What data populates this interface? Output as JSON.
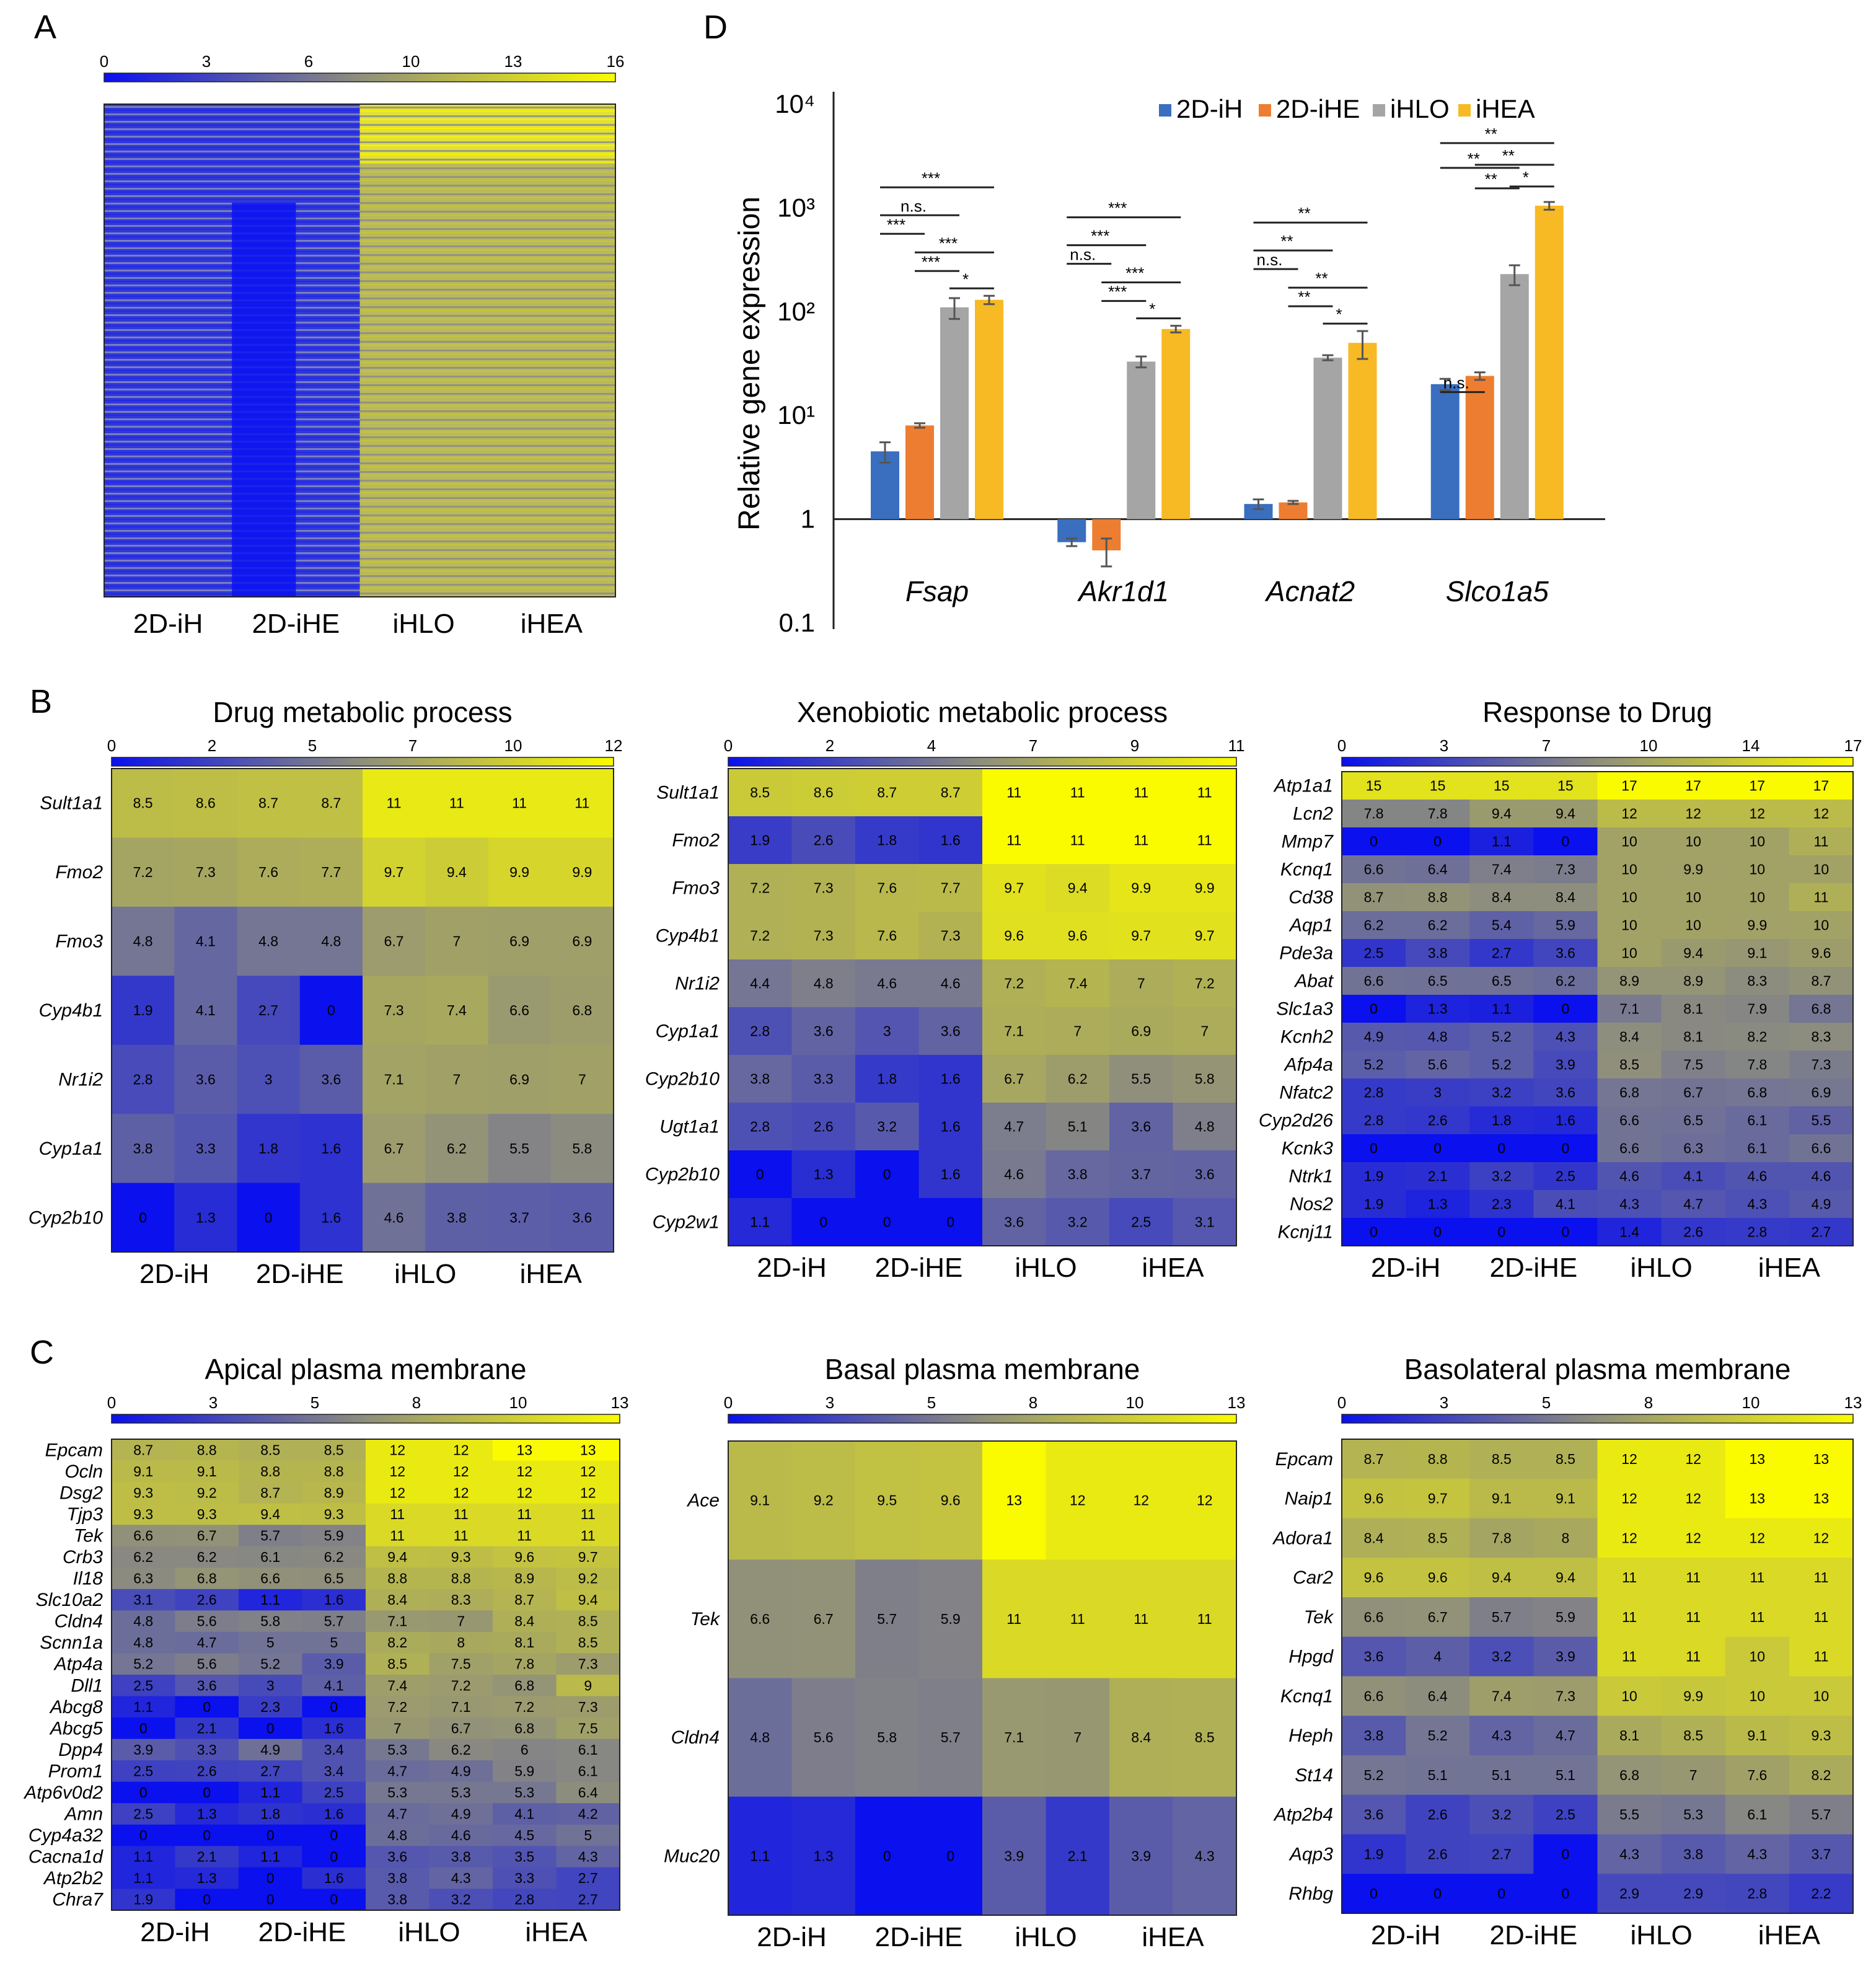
{
  "chart_data": [
    {
      "panel": "A",
      "type": "heatmap",
      "title": "",
      "scale_ticks": [
        "0",
        "3",
        "6",
        "10",
        "13",
        "16"
      ],
      "groups": [
        "2D-iH",
        "2D-iHE",
        "iHLO",
        "iHEA"
      ]
    },
    {
      "panel": "D",
      "type": "bar",
      "title": "",
      "ylabel": "Relative gene expression",
      "yscale": "log",
      "ylim": [
        0.1,
        10000
      ],
      "yticks": [
        "0.1",
        "1",
        "10¹",
        "10²",
        "10³",
        "10⁴"
      ],
      "categories": [
        "Fsap",
        "Akr1d1",
        "Acnat2",
        "Slco1a5"
      ],
      "series": [
        {
          "name": "2D-iH",
          "color": "#3a6ebf",
          "values": [
            4.5,
            0.6,
            1.4,
            20
          ],
          "err": [
            1.0,
            0.05,
            0.15,
            2.5
          ]
        },
        {
          "name": "2D-iHE",
          "color": "#ed7d31",
          "values": [
            8,
            0.5,
            1.45,
            24
          ],
          "err": [
            0.4,
            0.15,
            0.05,
            2
          ]
        },
        {
          "name": "iHLO",
          "color": "#a5a5a5",
          "values": [
            110,
            33,
            36,
            230
          ],
          "err": [
            25,
            4,
            2,
            50
          ]
        },
        {
          "name": "iHEA",
          "color": "#f7b924",
          "values": [
            130,
            68,
            50,
            1050
          ],
          "err": [
            12,
            5,
            15,
            90
          ]
        }
      ],
      "significance": [
        {
          "cat": 0,
          "labels": [
            "***",
            "n.s.",
            "***",
            "***",
            "***",
            "*"
          ]
        },
        {
          "cat": 1,
          "labels": [
            "***",
            "***",
            "n.s.",
            "***",
            "***",
            "*"
          ]
        },
        {
          "cat": 2,
          "labels": [
            "**",
            "**",
            "n.s.",
            "**",
            "**",
            "*"
          ]
        },
        {
          "cat": 3,
          "labels": [
            "**",
            "**",
            "*",
            "**",
            "**",
            "n.s."
          ]
        }
      ]
    },
    {
      "panel": "B",
      "type": "heatmap",
      "title": "Drug metabolic process",
      "scale_ticks": [
        "0",
        "2",
        "5",
        "7",
        "10",
        "12"
      ],
      "max": 12,
      "groups": [
        "2D-iH",
        "2D-iHE",
        "iHLO",
        "iHEA"
      ],
      "genes": [
        "Sult1a1",
        "Fmo2",
        "Fmo3",
        "Cyp4b1",
        "Nr1i2",
        "Cyp1a1",
        "Cyp2b10"
      ],
      "values": [
        [
          "8.5",
          "8.6",
          "8.7",
          "8.7",
          "11",
          "11",
          "11",
          "11"
        ],
        [
          "7.2",
          "7.3",
          "7.6",
          "7.7",
          "9.7",
          "9.4",
          "9.9",
          "9.9"
        ],
        [
          "4.8",
          "4.1",
          "4.8",
          "4.8",
          "6.7",
          "7",
          "6.9",
          "6.9"
        ],
        [
          "1.9",
          "4.1",
          "2.7",
          "0",
          "7.3",
          "7.4",
          "6.6",
          "6.8"
        ],
        [
          "2.8",
          "3.6",
          "3",
          "3.6",
          "7.1",
          "7",
          "6.9",
          "7"
        ],
        [
          "3.8",
          "3.3",
          "1.8",
          "1.6",
          "6.7",
          "6.2",
          "5.5",
          "5.8"
        ],
        [
          "0",
          "1.3",
          "0",
          "1.6",
          "4.6",
          "3.8",
          "3.7",
          "3.6"
        ]
      ]
    },
    {
      "panel": "B2",
      "type": "heatmap",
      "title": "Xenobiotic metabolic process",
      "scale_ticks": [
        "0",
        "2",
        "4",
        "7",
        "9",
        "11"
      ],
      "max": 11,
      "groups": [
        "2D-iH",
        "2D-iHE",
        "iHLO",
        "iHEA"
      ],
      "genes": [
        "Sult1a1",
        "Fmo2",
        "Fmo3",
        "Cyp4b1",
        "Nr1i2",
        "Cyp1a1",
        "Cyp2b10",
        "Ugt1a1",
        "Cyp2b10",
        "Cyp2w1"
      ],
      "values": [
        [
          "8.5",
          "8.6",
          "8.7",
          "8.7",
          "11",
          "11",
          "11",
          "11"
        ],
        [
          "1.9",
          "2.6",
          "1.8",
          "1.6",
          "11",
          "11",
          "11",
          "11"
        ],
        [
          "7.2",
          "7.3",
          "7.6",
          "7.7",
          "9.7",
          "9.4",
          "9.9",
          "9.9"
        ],
        [
          "7.2",
          "7.3",
          "7.6",
          "7.3",
          "9.6",
          "9.6",
          "9.7",
          "9.7"
        ],
        [
          "4.4",
          "4.8",
          "4.6",
          "4.6",
          "7.2",
          "7.4",
          "7",
          "7.2"
        ],
        [
          "2.8",
          "3.6",
          "3",
          "3.6",
          "7.1",
          "7",
          "6.9",
          "7"
        ],
        [
          "3.8",
          "3.3",
          "1.8",
          "1.6",
          "6.7",
          "6.2",
          "5.5",
          "5.8"
        ],
        [
          "2.8",
          "2.6",
          "3.2",
          "1.6",
          "4.7",
          "5.1",
          "3.6",
          "4.8"
        ],
        [
          "0",
          "1.3",
          "0",
          "1.6",
          "4.6",
          "3.8",
          "3.7",
          "3.6"
        ],
        [
          "1.1",
          "0",
          "0",
          "0",
          "3.6",
          "3.2",
          "2.5",
          "3.1"
        ]
      ]
    },
    {
      "panel": "B3",
      "type": "heatmap",
      "title": "Response to Drug",
      "scale_ticks": [
        "0",
        "3",
        "7",
        "10",
        "14",
        "17"
      ],
      "max": 17,
      "groups": [
        "2D-iH",
        "2D-iHE",
        "iHLO",
        "iHEA"
      ],
      "genes": [
        "Atp1a1",
        "Lcn2",
        "Mmp7",
        "Kcnq1",
        "Cd38",
        "Aqp1",
        "Pde3a",
        "Abat",
        "Slc1a3",
        "Kcnh2",
        "Afp4a",
        "Nfatc2",
        "Cyp2d26",
        "Kcnk3",
        "Ntrk1",
        "Nos2",
        "Kcnj11"
      ],
      "values": [
        [
          "15",
          "15",
          "15",
          "15",
          "17",
          "17",
          "17",
          "17"
        ],
        [
          "7.8",
          "7.8",
          "9.4",
          "9.4",
          "12",
          "12",
          "12",
          "12"
        ],
        [
          "0",
          "0",
          "1.1",
          "0",
          "10",
          "10",
          "10",
          "11"
        ],
        [
          "6.6",
          "6.4",
          "7.4",
          "7.3",
          "10",
          "9.9",
          "10",
          "10"
        ],
        [
          "8.7",
          "8.8",
          "8.4",
          "8.4",
          "10",
          "10",
          "10",
          "11"
        ],
        [
          "6.2",
          "6.2",
          "5.4",
          "5.9",
          "10",
          "10",
          "9.9",
          "10"
        ],
        [
          "2.5",
          "3.8",
          "2.7",
          "3.6",
          "10",
          "9.4",
          "9.1",
          "9.6"
        ],
        [
          "6.6",
          "6.5",
          "6.5",
          "6.2",
          "8.9",
          "8.9",
          "8.3",
          "8.7"
        ],
        [
          "0",
          "1.3",
          "1.1",
          "0",
          "7.1",
          "8.1",
          "7.9",
          "6.8"
        ],
        [
          "4.9",
          "4.8",
          "5.2",
          "4.3",
          "8.4",
          "8.1",
          "8.2",
          "8.3"
        ],
        [
          "5.2",
          "5.6",
          "5.2",
          "3.9",
          "8.5",
          "7.5",
          "7.8",
          "7.3"
        ],
        [
          "2.8",
          "3",
          "3.2",
          "3.6",
          "6.8",
          "6.7",
          "6.8",
          "6.9"
        ],
        [
          "2.8",
          "2.6",
          "1.8",
          "1.6",
          "6.6",
          "6.5",
          "6.1",
          "5.5"
        ],
        [
          "0",
          "0",
          "0",
          "0",
          "6.6",
          "6.3",
          "6.1",
          "6.6"
        ],
        [
          "1.9",
          "2.1",
          "3.2",
          "2.5",
          "4.6",
          "4.1",
          "4.6",
          "4.6"
        ],
        [
          "1.9",
          "1.3",
          "2.3",
          "4.1",
          "4.3",
          "4.7",
          "4.3",
          "4.9"
        ],
        [
          "0",
          "0",
          "0",
          "0",
          "1.4",
          "2.6",
          "2.8",
          "2.7"
        ]
      ]
    },
    {
      "panel": "C",
      "type": "heatmap",
      "title": "Apical plasma membrane",
      "scale_ticks": [
        "0",
        "3",
        "5",
        "8",
        "10",
        "13"
      ],
      "max": 13,
      "groups": [
        "2D-iH",
        "2D-iHE",
        "iHLO",
        "iHEA"
      ],
      "genes": [
        "Epcam",
        "Ocln",
        "Dsg2",
        "Tjp3",
        "Tek",
        "Crb3",
        "Il18",
        "Slc10a2",
        "Cldn4",
        "Scnn1a",
        "Atp4a",
        "Dll1",
        "Abcg8",
        "Abcg5",
        "Dpp4",
        "Prom1",
        "Atp6v0d2",
        "Amn",
        "Cyp4a32",
        "Cacna1d",
        "Atp2b2",
        "Chra7"
      ],
      "values": [
        [
          "8.7",
          "8.8",
          "8.5",
          "8.5",
          "12",
          "12",
          "13",
          "13"
        ],
        [
          "9.1",
          "9.1",
          "8.8",
          "8.8",
          "12",
          "12",
          "12",
          "12"
        ],
        [
          "9.3",
          "9.2",
          "8.7",
          "8.9",
          "12",
          "12",
          "12",
          "12"
        ],
        [
          "9.3",
          "9.3",
          "9.4",
          "9.3",
          "11",
          "11",
          "11",
          "11"
        ],
        [
          "6.6",
          "6.7",
          "5.7",
          "5.9",
          "11",
          "11",
          "11",
          "11"
        ],
        [
          "6.2",
          "6.2",
          "6.1",
          "6.2",
          "9.4",
          "9.3",
          "9.6",
          "9.7"
        ],
        [
          "6.3",
          "6.8",
          "6.6",
          "6.5",
          "8.8",
          "8.8",
          "8.9",
          "9.2"
        ],
        [
          "3.1",
          "2.6",
          "1.1",
          "1.6",
          "8.4",
          "8.3",
          "8.7",
          "9.4"
        ],
        [
          "4.8",
          "5.6",
          "5.8",
          "5.7",
          "7.1",
          "7",
          "8.4",
          "8.5"
        ],
        [
          "4.8",
          "4.7",
          "5",
          "5",
          "8.2",
          "8",
          "8.1",
          "8.5"
        ],
        [
          "5.2",
          "5.6",
          "5.2",
          "3.9",
          "8.5",
          "7.5",
          "7.8",
          "7.3"
        ],
        [
          "2.5",
          "3.6",
          "3",
          "4.1",
          "7.4",
          "7.2",
          "6.8",
          "9"
        ],
        [
          "1.1",
          "0",
          "2.3",
          "0",
          "7.2",
          "7.1",
          "7.2",
          "7.3"
        ],
        [
          "0",
          "2.1",
          "0",
          "1.6",
          "7",
          "6.7",
          "6.8",
          "7.5"
        ],
        [
          "3.9",
          "3.3",
          "4.9",
          "3.4",
          "5.3",
          "6.2",
          "6",
          "6.1"
        ],
        [
          "2.5",
          "2.6",
          "2.7",
          "3.4",
          "4.7",
          "4.9",
          "5.9",
          "6.1"
        ],
        [
          "0",
          "0",
          "1.1",
          "2.5",
          "5.3",
          "5.3",
          "5.3",
          "6.4"
        ],
        [
          "2.5",
          "1.3",
          "1.8",
          "1.6",
          "4.7",
          "4.9",
          "4.1",
          "4.2"
        ],
        [
          "0",
          "0",
          "0",
          "0",
          "4.8",
          "4.6",
          "4.5",
          "5"
        ],
        [
          "1.1",
          "2.1",
          "1.1",
          "0",
          "3.6",
          "3.8",
          "3.5",
          "4.3"
        ],
        [
          "1.1",
          "1.3",
          "0",
          "1.6",
          "3.8",
          "4.3",
          "3.3",
          "2.7"
        ],
        [
          "1.9",
          "0",
          "0",
          "0",
          "3.8",
          "3.2",
          "2.8",
          "2.7"
        ]
      ]
    },
    {
      "panel": "C2",
      "type": "heatmap",
      "title": "Basal plasma membrane",
      "scale_ticks": [
        "0",
        "3",
        "5",
        "8",
        "10",
        "13"
      ],
      "max": 13,
      "groups": [
        "2D-iH",
        "2D-iHE",
        "iHLO",
        "iHEA"
      ],
      "genes": [
        "Ace",
        "Tek",
        "Cldn4",
        "Muc20"
      ],
      "values": [
        [
          "9.1",
          "9.2",
          "9.5",
          "9.6",
          "13",
          "12",
          "12",
          "12"
        ],
        [
          "6.6",
          "6.7",
          "5.7",
          "5.9",
          "11",
          "11",
          "11",
          "11"
        ],
        [
          "4.8",
          "5.6",
          "5.8",
          "5.7",
          "7.1",
          "7",
          "8.4",
          "8.5"
        ],
        [
          "1.1",
          "1.3",
          "0",
          "0",
          "3.9",
          "2.1",
          "3.9",
          "4.3"
        ]
      ]
    },
    {
      "panel": "C3",
      "type": "heatmap",
      "title": "Basolateral plasma membrane",
      "scale_ticks": [
        "0",
        "3",
        "5",
        "8",
        "10",
        "13"
      ],
      "max": 13,
      "groups": [
        "2D-iH",
        "2D-iHE",
        "iHLO",
        "iHEA"
      ],
      "genes": [
        "Epcam",
        "Naip1",
        "Adora1",
        "Car2",
        "Tek",
        "Hpgd",
        "Kcnq1",
        "Heph",
        "St14",
        "Atp2b4",
        "Aqp3",
        "Rhbg"
      ],
      "values": [
        [
          "8.7",
          "8.8",
          "8.5",
          "8.5",
          "12",
          "12",
          "13",
          "13"
        ],
        [
          "9.6",
          "9.7",
          "9.1",
          "9.1",
          "12",
          "12",
          "13",
          "13"
        ],
        [
          "8.4",
          "8.5",
          "7.8",
          "8",
          "12",
          "12",
          "12",
          "12"
        ],
        [
          "9.6",
          "9.6",
          "9.4",
          "9.4",
          "11",
          "11",
          "11",
          "11"
        ],
        [
          "6.6",
          "6.7",
          "5.7",
          "5.9",
          "11",
          "11",
          "11",
          "11"
        ],
        [
          "3.6",
          "4",
          "3.2",
          "3.9",
          "11",
          "11",
          "10",
          "11"
        ],
        [
          "6.6",
          "6.4",
          "7.4",
          "7.3",
          "10",
          "9.9",
          "10",
          "10"
        ],
        [
          "3.8",
          "5.2",
          "4.3",
          "4.7",
          "8.1",
          "8.5",
          "9.1",
          "9.3"
        ],
        [
          "5.2",
          "5.1",
          "5.1",
          "5.1",
          "6.8",
          "7",
          "7.6",
          "8.2"
        ],
        [
          "3.6",
          "2.6",
          "3.2",
          "2.5",
          "5.5",
          "5.3",
          "6.1",
          "5.7"
        ],
        [
          "1.9",
          "2.6",
          "2.7",
          "0",
          "4.3",
          "3.8",
          "4.3",
          "3.7"
        ],
        [
          "0",
          "0",
          "0",
          "0",
          "2.9",
          "2.9",
          "2.8",
          "2.2"
        ]
      ]
    }
  ],
  "panel_letters": [
    "A",
    "B",
    "C",
    "D"
  ],
  "colors": {
    "low": "#0a10ee",
    "mid": "#8f8f7c",
    "high": "#fbfb00"
  }
}
